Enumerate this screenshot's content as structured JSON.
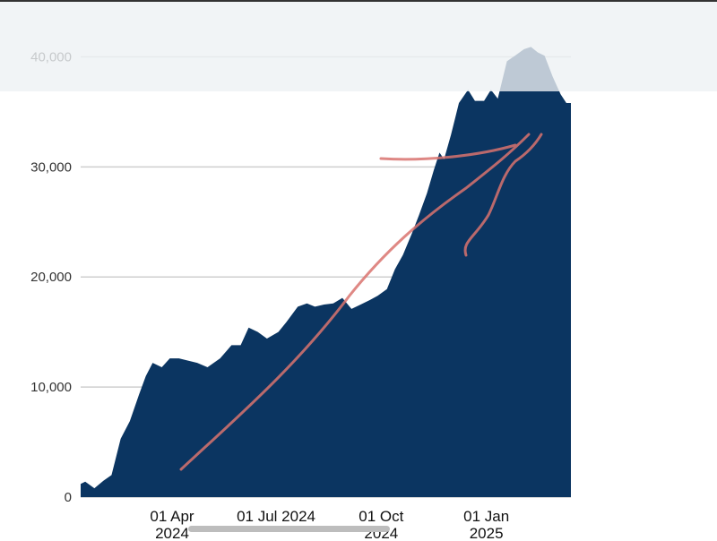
{
  "chart_data": {
    "type": "area",
    "color": "#0b3561",
    "grid": true,
    "x": [
      "2024-01-12",
      "2024-01-16",
      "2024-01-24",
      "2024-02-01",
      "2024-02-08",
      "2024-02-16",
      "2024-02-24",
      "2024-03-03",
      "2024-03-09",
      "2024-03-15",
      "2024-03-23",
      "2024-03-30",
      "2024-04-07",
      "2024-04-15",
      "2024-04-23",
      "2024-05-02",
      "2024-05-13",
      "2024-05-23",
      "2024-05-31",
      "2024-06-07",
      "2024-06-15",
      "2024-06-23",
      "2024-07-03",
      "2024-07-10",
      "2024-07-20",
      "2024-07-28",
      "2024-08-04",
      "2024-08-12",
      "2024-08-20",
      "2024-08-28",
      "2024-09-05",
      "2024-09-13",
      "2024-09-21",
      "2024-09-28",
      "2024-10-06",
      "2024-10-13",
      "2024-10-20",
      "2024-10-28",
      "2024-11-03",
      "2024-11-10",
      "2024-11-16",
      "2024-11-21",
      "2024-11-25",
      "2024-12-01",
      "2024-12-08",
      "2024-12-16",
      "2024-12-22",
      "2024-12-30",
      "2025-01-05",
      "2025-01-11",
      "2025-01-19",
      "2025-01-26",
      "2025-02-03",
      "2025-02-09",
      "2025-02-15",
      "2025-02-21",
      "2025-02-28",
      "2025-03-07",
      "2025-03-12",
      "2025-03-16"
    ],
    "values": [
      1200,
      1400,
      800,
      1500,
      2000,
      5300,
      6900,
      9300,
      11000,
      12200,
      11800,
      12600,
      12600,
      12400,
      12200,
      11800,
      12600,
      13800,
      13800,
      15400,
      15000,
      14400,
      15000,
      15900,
      17300,
      17600,
      17300,
      17500,
      17600,
      18100,
      17100,
      17500,
      17900,
      18300,
      18900,
      20700,
      22000,
      24000,
      25600,
      27600,
      29700,
      31300,
      30700,
      32900,
      35800,
      37000,
      36000,
      36000,
      37000,
      36200,
      39600,
      40100,
      40700,
      40900,
      40400,
      40100,
      38200,
      36600,
      35800,
      35800
    ],
    "xlim": [
      "2024-01-12",
      "2025-03-16"
    ],
    "xticks": [
      {
        "value": "2024-04-01",
        "label": [
          "01 Apr",
          "2024"
        ]
      },
      {
        "value": "2024-07-01",
        "label": [
          "01 Jul 2024"
        ]
      },
      {
        "value": "2024-10-01",
        "label": [
          "01 Oct",
          "2024"
        ]
      },
      {
        "value": "2025-01-01",
        "label": [
          "01 Jan",
          "2025"
        ]
      }
    ],
    "ylim": [
      0,
      45000
    ],
    "yticks": [
      0,
      {
        "value": 10000,
        "label": "10,000"
      },
      {
        "value": 20000,
        "label": "20,000"
      },
      {
        "value": 30000,
        "label": "30,000"
      },
      {
        "value": 40000,
        "label": "40,000"
      }
    ]
  }
}
